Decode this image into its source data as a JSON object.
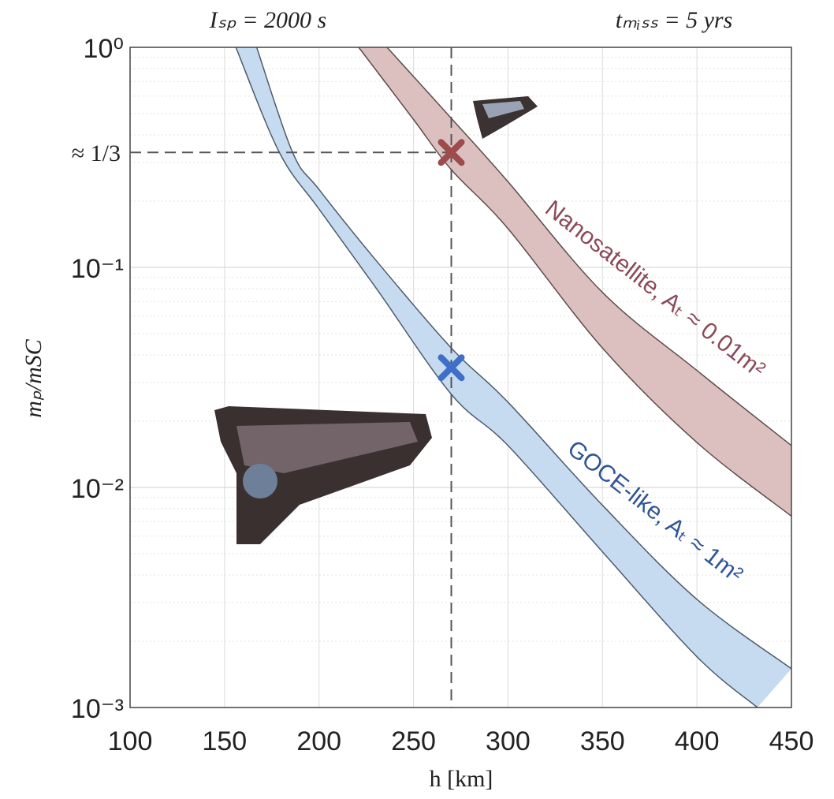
{
  "chart_data": {
    "type": "band",
    "title_left": "Iₛₚ = 2000 s",
    "title_right": "tₘᵢₛₛ = 5 yrs",
    "xlabel": "h [km]",
    "ylabel": "mₚ/mSC",
    "xlim": [
      100,
      450
    ],
    "xticks": [
      100,
      150,
      200,
      250,
      300,
      350,
      400,
      450
    ],
    "ylim": [
      0.001,
      1
    ],
    "yticks": [
      {
        "value": 0.001,
        "label": "10⁻³"
      },
      {
        "value": 0.01,
        "label": "10⁻²"
      },
      {
        "value": 0.1,
        "label": "10⁻¹"
      },
      {
        "value": 1,
        "label": "10⁰"
      }
    ],
    "log_y": true,
    "grid": true,
    "series": [
      {
        "name": "GOCE-like, Aₜ ≈ 1m²",
        "color": "#c6dbf0",
        "edge_color": "#4d5b6b",
        "label_color": "#2f5597",
        "upper": {
          "x": [
            167,
            186,
            200,
            230,
            270,
            300,
            350,
            400,
            450
          ],
          "values": [
            1,
            0.333,
            0.226,
            0.108,
            0.043,
            0.0244,
            0.0083,
            0.0031,
            0.0015
          ]
        },
        "lower": {
          "x": [
            156,
            179,
            200,
            230,
            270,
            300,
            350,
            400,
            432
          ],
          "values": [
            1,
            0.333,
            0.184,
            0.081,
            0.0265,
            0.0155,
            0.0051,
            0.0017,
            0.001
          ]
        },
        "marker": {
          "x": 270,
          "y": 0.035,
          "color": "#3f6fc6"
        }
      },
      {
        "name": "Nanosatellite, Aₜ ≈ 0.01m²",
        "color": "#dcc0c0",
        "edge_color": "#5e4c4c",
        "label_color": "#8b4a5a",
        "upper": {
          "x": [
            236,
            270,
            300,
            350,
            400,
            450
          ],
          "values": [
            1,
            0.476,
            0.245,
            0.077,
            0.034,
            0.0155
          ]
        },
        "lower": {
          "x": [
            221,
            250,
            270,
            300,
            350,
            400,
            450
          ],
          "values": [
            1,
            0.47,
            0.278,
            0.15,
            0.043,
            0.016,
            0.0074
          ]
        },
        "marker": {
          "x": 270,
          "y": 0.333,
          "color": "#9e4b4b"
        }
      }
    ],
    "reference": {
      "x": 270,
      "y": 0.333,
      "y_label": "≈ 1/3",
      "color": "#c00000"
    }
  }
}
